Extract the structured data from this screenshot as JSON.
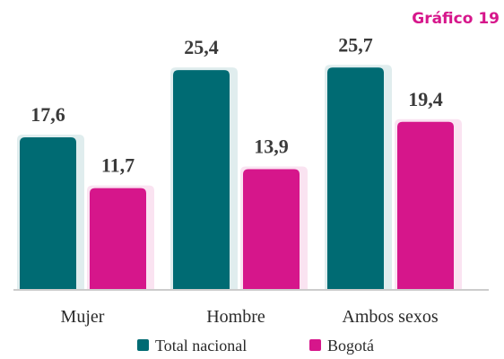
{
  "chart_data": {
    "type": "bar",
    "title": "Gráfico 19",
    "categories": [
      "Mujer",
      "Hombre",
      "Ambos sexos"
    ],
    "series": [
      {
        "name": "Total nacional",
        "color": "#006b73",
        "values": [
          17.6,
          25.4,
          25.7
        ],
        "value_labels": [
          "17,6",
          "25,4",
          "25,7"
        ]
      },
      {
        "name": "Bogotá",
        "color": "#d6168b",
        "values": [
          11.7,
          13.9,
          19.4
        ],
        "value_labels": [
          "11,7",
          "13,9",
          "19,4"
        ]
      }
    ]
  }
}
